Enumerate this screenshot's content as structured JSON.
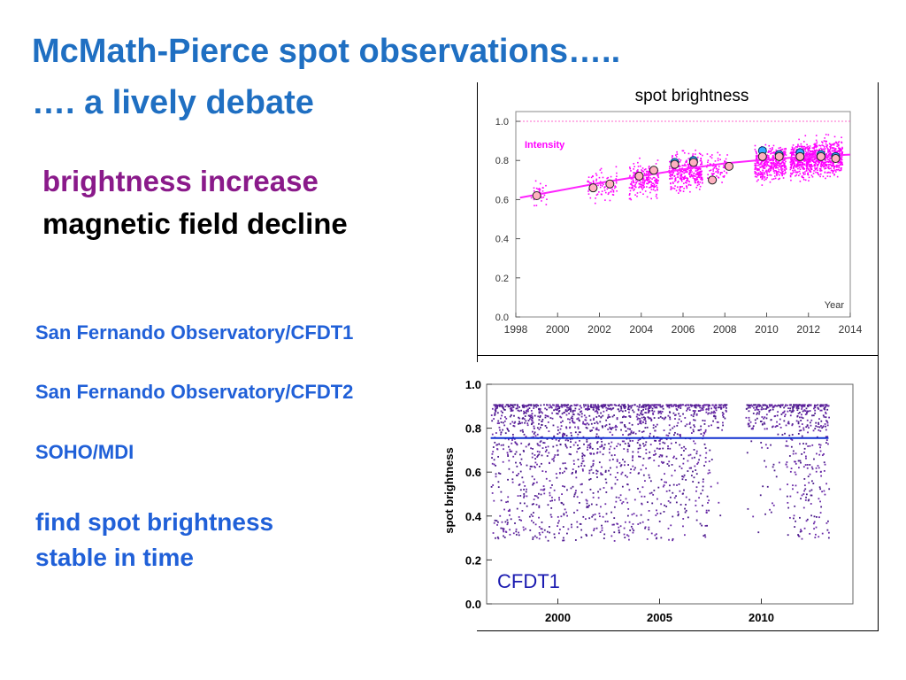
{
  "slide": {
    "title": "McMath-Pierce spot observations…..",
    "subtitle": "…. a lively debate",
    "heading_increase": "brightness increase",
    "heading_decline": "magnetic field decline",
    "sources": [
      "San Fernando Observatory/CFDT1",
      "San Fernando Observatory/CFDT2",
      "SOHO/MDI"
    ],
    "conclusion_line1": "find spot brightness",
    "conclusion_line2": "stable in time"
  },
  "colors": {
    "title": "#1f6fc2",
    "increase": "#8a1a8a",
    "sources": "#2060d8",
    "magenta": "#ff00ff",
    "purple": "#5a2a9a",
    "fit_blue": "#1030d0"
  },
  "chart_data": [
    {
      "type": "scatter",
      "title": "spot brightness",
      "series_label": "Intensity",
      "xlabel": "Year",
      "ylabel": "",
      "xlim": [
        1998,
        2014
      ],
      "ylim": [
        0.0,
        1.05
      ],
      "x_ticks": [
        "1998",
        "2000",
        "2002",
        "2004",
        "2006",
        "2008",
        "2010",
        "2012",
        "2014"
      ],
      "y_ticks": [
        "0.0",
        "0.2",
        "0.4",
        "0.6",
        "0.8",
        "1.0"
      ],
      "reference_line_y": 1.0,
      "annual_means": [
        {
          "x": 1999.0,
          "y": 0.62
        },
        {
          "x": 2001.7,
          "y": 0.66
        },
        {
          "x": 2002.5,
          "y": 0.68
        },
        {
          "x": 2003.9,
          "y": 0.72
        },
        {
          "x": 2004.6,
          "y": 0.75
        },
        {
          "x": 2005.6,
          "y": 0.78
        },
        {
          "x": 2006.5,
          "y": 0.79
        },
        {
          "x": 2007.4,
          "y": 0.7
        },
        {
          "x": 2008.2,
          "y": 0.77
        },
        {
          "x": 2009.8,
          "y": 0.82
        },
        {
          "x": 2010.6,
          "y": 0.82
        },
        {
          "x": 2011.6,
          "y": 0.82
        },
        {
          "x": 2012.6,
          "y": 0.82
        },
        {
          "x": 2013.3,
          "y": 0.81
        }
      ],
      "blue_means": [
        {
          "x": 2009.8,
          "y": 0.85
        },
        {
          "x": 2010.6,
          "y": 0.83
        },
        {
          "x": 2011.6,
          "y": 0.84
        },
        {
          "x": 2012.6,
          "y": 0.83
        },
        {
          "x": 2013.3,
          "y": 0.82
        },
        {
          "x": 2005.6,
          "y": 0.79
        },
        {
          "x": 2006.5,
          "y": 0.8
        }
      ],
      "fit_curve": [
        {
          "x": 1998.2,
          "y": 0.61
        },
        {
          "x": 2000,
          "y": 0.645
        },
        {
          "x": 2002,
          "y": 0.685
        },
        {
          "x": 2004,
          "y": 0.72
        },
        {
          "x": 2006,
          "y": 0.755
        },
        {
          "x": 2008,
          "y": 0.785
        },
        {
          "x": 2010,
          "y": 0.805
        },
        {
          "x": 2012,
          "y": 0.82
        },
        {
          "x": 2014,
          "y": 0.83
        }
      ]
    },
    {
      "type": "scatter",
      "title": "",
      "series_label": "CFDT1",
      "xlabel": "",
      "ylabel": "spot brightness",
      "xlim": [
        1996.5,
        2014.5
      ],
      "ylim": [
        0.0,
        1.0
      ],
      "x_ticks": [
        "2000",
        "2005",
        "2010"
      ],
      "y_ticks": [
        "0.0",
        "0.2",
        "0.4",
        "0.6",
        "0.8",
        "1.0"
      ],
      "fit_line_y": 0.755,
      "fit_x_range": [
        1996.7,
        2013.3
      ],
      "data_gap_years": [
        2008.3,
        2009.2
      ]
    }
  ]
}
